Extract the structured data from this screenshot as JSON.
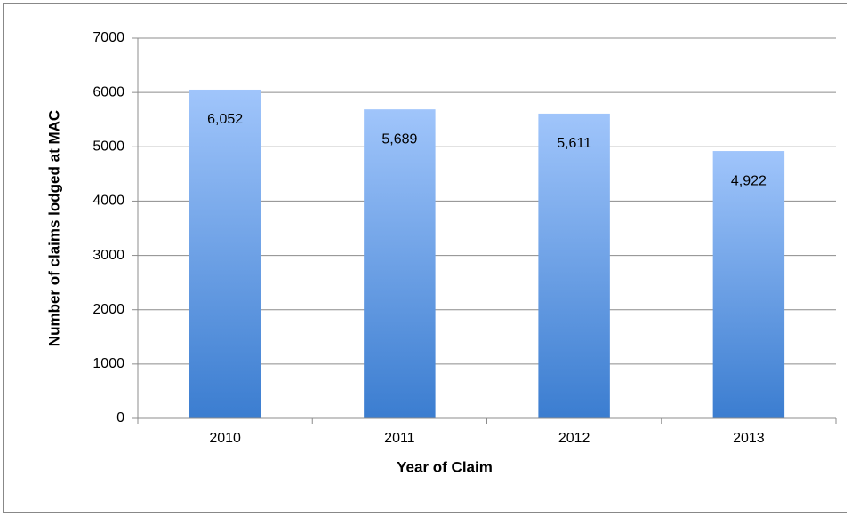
{
  "chart_data": {
    "type": "bar",
    "xlabel": "Year of Claim",
    "ylabel": "Number of claims lodged at MAC",
    "categories": [
      "2010",
      "2011",
      "2012",
      "2013"
    ],
    "values": [
      6052,
      5689,
      5611,
      4922
    ],
    "value_labels": [
      "6,052",
      "5,689",
      "5,611",
      "4,922"
    ],
    "color": [
      "#a0c5fb",
      "#3b7dd0"
    ],
    "ylim": [
      0,
      7000
    ],
    "yticks": [
      0,
      1000,
      2000,
      3000,
      4000,
      5000,
      6000,
      7000
    ],
    "grid": true
  }
}
